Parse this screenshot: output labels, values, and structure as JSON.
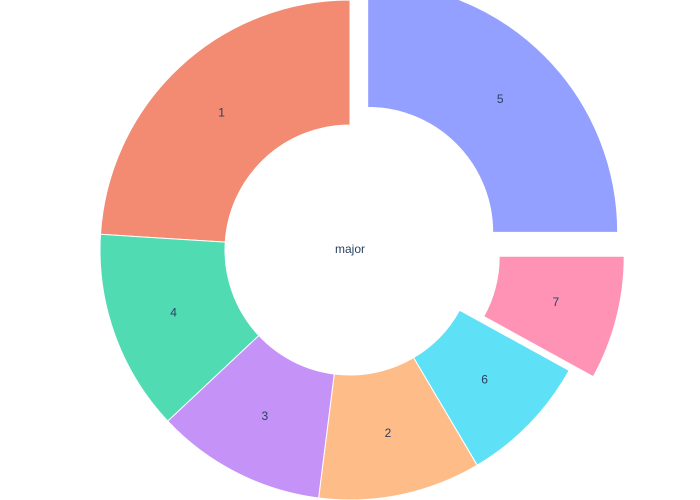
{
  "chart_data": {
    "type": "pie",
    "hole_label": "major",
    "slices": [
      {
        "label": "5",
        "value": 25,
        "color": "#94a0ff",
        "label_color": "#ffffff"
      },
      {
        "label": "1",
        "value": 24,
        "color": "#f38a72",
        "label_color": "#2a3f5f"
      },
      {
        "label": "4",
        "value": 13,
        "color": "#51dbb3",
        "label_color": "#2a3f5f"
      },
      {
        "label": "3",
        "value": 11,
        "color": "#c592f8",
        "label_color": "#2a3f5f"
      },
      {
        "label": "2",
        "value": 10.5,
        "color": "#febc89",
        "label_color": "#2a3f5f"
      },
      {
        "label": "6",
        "value": 8.5,
        "color": "#5ee0f7",
        "label_color": "#2a3f5f"
      },
      {
        "label": "7",
        "value": 8,
        "color": "#fe93b6",
        "label_color": "#2a3f5f"
      }
    ],
    "pulled": [
      "5",
      "7"
    ],
    "legend": "none"
  }
}
